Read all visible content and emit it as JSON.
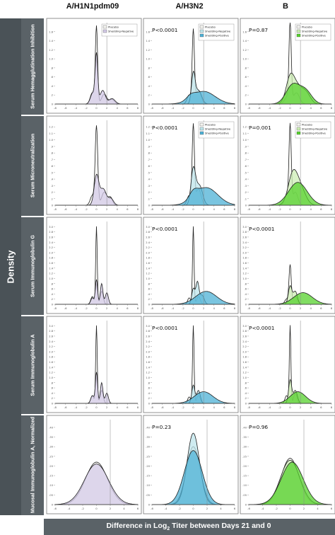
{
  "figure": {
    "y_label": "Density",
    "x_label_pre": "Difference in Log",
    "x_label_sub": "2",
    "x_label_post": " Titer between Days 21 and 0"
  },
  "columns": [
    "A/H1N1pdm09",
    "A/H3N2",
    "B"
  ],
  "rows": [
    "Serum Hemagglutination Inhibition",
    "Serum Microneutralization",
    "Serum Immunoglobulin G",
    "Serum Immunoglobulin A",
    "Mucosal Immunoglobulin A, Normalized"
  ],
  "legend_labels": {
    "placebo": "Placebo",
    "shedding_negative": "Shedding-Negative",
    "shedding_positive": "Shedding-Positive"
  },
  "colors": {
    "placebo": "#f4f4f0",
    "h1_neg": "#d4cbe8",
    "h3_neg": "#bfe6ec",
    "h3_pos": "#4eb1d6",
    "b_neg": "#cdeeb6",
    "b_pos": "#57d12e"
  },
  "chart_data": [
    {
      "type": "area",
      "row": 0,
      "col": 0,
      "p_value": "",
      "xlim": [
        -8,
        8
      ],
      "ylim": [
        0,
        1.8
      ],
      "yticks": [
        0,
        0.2,
        0.4,
        0.6,
        0.8,
        1.0,
        1.2,
        1.4,
        1.6
      ],
      "legend": [
        "Placebo",
        "Shedding-Negative"
      ],
      "series": [
        {
          "name": "Placebo",
          "color": "placebo",
          "peaks": [
            [
              0,
              1.7,
              0.22
            ],
            [
              1.5,
              0.22,
              0.5
            ],
            [
              -0.8,
              0.25,
              0.4
            ],
            [
              3,
              0.1,
              0.5
            ]
          ]
        },
        {
          "name": "Shedding-Negative",
          "color": "h1_neg",
          "peaks": [
            [
              0,
              1.05,
              0.25
            ],
            [
              1.2,
              0.3,
              0.5
            ],
            [
              -0.7,
              0.25,
              0.45
            ],
            [
              3,
              0.12,
              0.6
            ]
          ]
        }
      ]
    },
    {
      "type": "area",
      "row": 0,
      "col": 1,
      "p_value": "P<0.0001",
      "xlim": [
        -8,
        8
      ],
      "ylim": [
        0,
        1.8
      ],
      "yticks": [
        0,
        0.2,
        0.4,
        0.6,
        0.8,
        1.0,
        1.2,
        1.4,
        1.6
      ],
      "legend": [
        "Placebo",
        "Shedding-Negative",
        "Shedding-Positive"
      ],
      "series": [
        {
          "name": "Placebo",
          "color": "placebo",
          "peaks": [
            [
              0,
              1.6,
              0.22
            ],
            [
              1,
              0.3,
              0.5
            ],
            [
              -0.8,
              0.2,
              0.4
            ]
          ]
        },
        {
          "name": "Shedding-Negative",
          "color": "h3_neg",
          "peaks": [
            [
              0,
              0.65,
              0.35
            ],
            [
              1,
              0.3,
              0.6
            ]
          ]
        },
        {
          "name": "Shedding-Positive",
          "color": "h3_pos",
          "peaks": [
            [
              2,
              0.28,
              2.2
            ],
            [
              -0.5,
              0.08,
              0.8
            ]
          ]
        }
      ]
    },
    {
      "type": "area",
      "row": 0,
      "col": 2,
      "p_value": "P=0.87",
      "xlim": [
        -8,
        8
      ],
      "ylim": [
        0,
        1.8
      ],
      "yticks": [
        0,
        0.2,
        0.4,
        0.6,
        0.8,
        1.0,
        1.2,
        1.4,
        1.6
      ],
      "legend": [
        "Placebo",
        "Shedding-Negative",
        "Shedding-Positive"
      ],
      "series": [
        {
          "name": "Placebo",
          "color": "placebo",
          "peaks": [
            [
              0,
              1.75,
              0.22
            ],
            [
              1.2,
              0.25,
              0.6
            ],
            [
              -0.6,
              0.15,
              0.5
            ]
          ]
        },
        {
          "name": "Shedding-Negative",
          "color": "b_neg",
          "peaks": [
            [
              0,
              0.55,
              0.8
            ],
            [
              1.5,
              0.35,
              1.0
            ],
            [
              3.2,
              0.2,
              0.8
            ]
          ]
        },
        {
          "name": "Shedding-Positive",
          "color": "b_pos",
          "peaks": [
            [
              0.5,
              0.42,
              1.3
            ],
            [
              3,
              0.28,
              1.2
            ]
          ]
        }
      ]
    },
    {
      "type": "area",
      "row": 1,
      "col": 0,
      "p_value": "",
      "xlim": [
        -8,
        8
      ],
      "ylim": [
        0,
        1.3
      ],
      "yticks": [
        0,
        0.1,
        0.2,
        0.3,
        0.4,
        0.5,
        0.6,
        0.7,
        0.8,
        0.9,
        1.0,
        1.1,
        1.2
      ],
      "series": [
        {
          "name": "Placebo",
          "color": "placebo",
          "peaks": [
            [
              0,
              1.2,
              0.25
            ],
            [
              1.5,
              0.2,
              0.5
            ],
            [
              -0.8,
              0.15,
              0.4
            ],
            [
              2.7,
              0.12,
              0.4
            ]
          ]
        },
        {
          "name": "Shedding-Negative",
          "color": "h1_neg",
          "peaks": [
            [
              0,
              0.45,
              0.45
            ],
            [
              1.3,
              0.25,
              0.6
            ],
            [
              2.8,
              0.1,
              0.5
            ]
          ]
        }
      ]
    },
    {
      "type": "area",
      "row": 1,
      "col": 1,
      "p_value": "P<0.0001",
      "xlim": [
        -8,
        8
      ],
      "ylim": [
        0,
        1.3
      ],
      "yticks": [
        0,
        0.1,
        0.2,
        0.3,
        0.4,
        0.5,
        0.6,
        0.7,
        0.8,
        0.9,
        1.0,
        1.1,
        1.2
      ],
      "legend": [
        "Placebo",
        "Shedding-Negative",
        "Shedding-Positive"
      ],
      "series": [
        {
          "name": "Placebo",
          "color": "placebo",
          "peaks": [
            [
              0,
              1.2,
              0.22
            ],
            [
              1,
              0.25,
              0.5
            ],
            [
              -0.8,
              0.15,
              0.4
            ]
          ]
        },
        {
          "name": "Shedding-Negative",
          "color": "h3_neg",
          "peaks": [
            [
              0,
              0.55,
              0.45
            ],
            [
              1.2,
              0.3,
              0.6
            ]
          ]
        },
        {
          "name": "Shedding-Positive",
          "color": "h3_pos",
          "peaks": [
            [
              2.5,
              0.27,
              2.2
            ],
            [
              0,
              0.1,
              0.8
            ]
          ]
        }
      ]
    },
    {
      "type": "area",
      "row": 1,
      "col": 2,
      "p_value": "P=0.001",
      "xlim": [
        -8,
        8
      ],
      "ylim": [
        0,
        1.3
      ],
      "yticks": [
        0,
        0.1,
        0.2,
        0.3,
        0.4,
        0.5,
        0.6,
        0.7,
        0.8,
        0.9,
        1.0,
        1.1,
        1.2
      ],
      "legend": [
        "Placebo",
        "Shedding-Negative",
        "Shedding-Positive"
      ],
      "series": [
        {
          "name": "Placebo",
          "color": "placebo",
          "peaks": [
            [
              0,
              1.2,
              0.22
            ],
            [
              1,
              0.2,
              0.5
            ],
            [
              -0.7,
              0.15,
              0.4
            ]
          ]
        },
        {
          "name": "Shedding-Negative",
          "color": "b_neg",
          "peaks": [
            [
              0.5,
              0.45,
              0.9
            ],
            [
              2,
              0.25,
              1.0
            ]
          ]
        },
        {
          "name": "Shedding-Positive",
          "color": "b_pos",
          "peaks": [
            [
              1.5,
              0.35,
              1.8
            ]
          ]
        }
      ]
    },
    {
      "type": "area",
      "row": 2,
      "col": 0,
      "p_value": "",
      "xlim": [
        -8,
        8
      ],
      "ylim": [
        0,
        3.2
      ],
      "yticks": [
        0,
        0.2,
        0.4,
        0.6,
        0.8,
        1.0,
        1.2,
        1.4,
        1.6,
        1.8,
        2.0,
        2.2,
        2.4,
        2.6,
        2.8,
        3.0
      ],
      "series": [
        {
          "name": "Placebo",
          "color": "placebo",
          "peaks": [
            [
              0,
              3.0,
              0.15
            ],
            [
              1,
              0.5,
              0.3
            ],
            [
              -0.8,
              0.3,
              0.3
            ]
          ]
        },
        {
          "name": "Shedding-Negative",
          "color": "h1_neg",
          "peaks": [
            [
              0,
              0.95,
              0.22
            ],
            [
              1,
              0.8,
              0.25
            ],
            [
              2,
              0.45,
              0.3
            ],
            [
              -0.8,
              0.25,
              0.3
            ]
          ]
        }
      ]
    },
    {
      "type": "area",
      "row": 2,
      "col": 1,
      "p_value": "P<0.0001",
      "xlim": [
        -8,
        8
      ],
      "ylim": [
        0,
        3.2
      ],
      "yticks": [
        0,
        0.2,
        0.4,
        0.6,
        0.8,
        1.0,
        1.2,
        1.4,
        1.6,
        1.8,
        2.0,
        2.2,
        2.4,
        2.6,
        2.8,
        3.0
      ],
      "series": [
        {
          "name": "Placebo",
          "color": "placebo",
          "peaks": [
            [
              0,
              3.0,
              0.15
            ],
            [
              1,
              0.3,
              0.35
            ],
            [
              -0.8,
              0.25,
              0.3
            ]
          ]
        },
        {
          "name": "Shedding-Negative",
          "color": "h3_neg",
          "peaks": [
            [
              0,
              0.6,
              0.3
            ],
            [
              0.8,
              0.85,
              0.3
            ],
            [
              1.7,
              0.35,
              0.4
            ]
          ]
        },
        {
          "name": "Shedding-Positive",
          "color": "h3_pos",
          "peaks": [
            [
              2.5,
              0.5,
              2.0
            ]
          ]
        }
      ]
    },
    {
      "type": "area",
      "row": 2,
      "col": 2,
      "p_value": "P<0.0001",
      "xlim": [
        -8,
        8
      ],
      "ylim": [
        0,
        3.2
      ],
      "yticks": [
        0,
        0.2,
        0.4,
        0.6,
        0.8,
        1.0,
        1.2,
        1.4,
        1.6,
        1.8,
        2.0,
        2.2,
        2.4,
        2.6,
        2.8,
        3.0
      ],
      "series": [
        {
          "name": "Placebo",
          "color": "placebo",
          "peaks": [
            [
              0,
              1.5,
              0.22
            ],
            [
              1,
              0.3,
              0.4
            ],
            [
              -0.7,
              0.2,
              0.35
            ]
          ]
        },
        {
          "name": "Shedding-Negative",
          "color": "b_neg",
          "peaks": [
            [
              0,
              0.7,
              0.35
            ],
            [
              1,
              0.5,
              0.4
            ]
          ]
        },
        {
          "name": "Shedding-Positive",
          "color": "b_pos",
          "peaks": [
            [
              2.5,
              0.45,
              1.8
            ]
          ]
        }
      ]
    },
    {
      "type": "area",
      "row": 3,
      "col": 0,
      "p_value": "",
      "xlim": [
        -8,
        8
      ],
      "ylim": [
        0,
        3.2
      ],
      "yticks": [
        0,
        0.2,
        0.4,
        0.6,
        0.8,
        1.0,
        1.2,
        1.4,
        1.6,
        1.8,
        2.0,
        2.2,
        2.4,
        2.6,
        2.8,
        3.0
      ],
      "series": [
        {
          "name": "Placebo",
          "color": "placebo",
          "peaks": [
            [
              0,
              3.0,
              0.15
            ],
            [
              1,
              0.5,
              0.3
            ],
            [
              -0.8,
              0.3,
              0.3
            ]
          ]
        },
        {
          "name": "Shedding-Negative",
          "color": "h1_neg",
          "peaks": [
            [
              0,
              1.2,
              0.22
            ],
            [
              1,
              0.8,
              0.25
            ],
            [
              2,
              0.4,
              0.3
            ],
            [
              -0.8,
              0.3,
              0.3
            ]
          ]
        }
      ]
    },
    {
      "type": "area",
      "row": 3,
      "col": 1,
      "p_value": "P<0.0001",
      "xlim": [
        -8,
        8
      ],
      "ylim": [
        0,
        3.2
      ],
      "yticks": [
        0,
        0.2,
        0.4,
        0.6,
        0.8,
        1.0,
        1.2,
        1.4,
        1.6,
        1.8,
        2.0,
        2.2,
        2.4,
        2.6,
        2.8,
        3.0
      ],
      "series": [
        {
          "name": "Placebo",
          "color": "placebo",
          "peaks": [
            [
              0,
              3.0,
              0.15
            ],
            [
              1,
              0.3,
              0.35
            ],
            [
              -0.8,
              0.25,
              0.3
            ]
          ]
        },
        {
          "name": "Shedding-Negative",
          "color": "h3_neg",
          "peaks": [
            [
              0,
              0.7,
              0.3
            ],
            [
              1,
              0.5,
              0.35
            ]
          ]
        },
        {
          "name": "Shedding-Positive",
          "color": "h3_pos",
          "peaks": [
            [
              2,
              0.45,
              1.8
            ]
          ]
        }
      ]
    },
    {
      "type": "area",
      "row": 3,
      "col": 2,
      "p_value": "P<0.0001",
      "xlim": [
        -8,
        8
      ],
      "ylim": [
        0,
        3.2
      ],
      "yticks": [
        0,
        0.2,
        0.4,
        0.6,
        0.8,
        1.0,
        1.2,
        1.4,
        1.6,
        1.8,
        2.0,
        2.2,
        2.4,
        2.6,
        2.8,
        3.0
      ],
      "series": [
        {
          "name": "Placebo",
          "color": "placebo",
          "peaks": [
            [
              0,
              3.0,
              0.15
            ],
            [
              1,
              0.4,
              0.3
            ],
            [
              -0.7,
              0.3,
              0.3
            ]
          ]
        },
        {
          "name": "Shedding-Negative",
          "color": "b_neg",
          "peaks": [
            [
              0,
              0.9,
              0.3
            ],
            [
              1,
              0.5,
              0.4
            ]
          ]
        },
        {
          "name": "Shedding-Positive",
          "color": "b_pos",
          "peaks": [
            [
              1.5,
              0.45,
              1.5
            ]
          ]
        }
      ]
    },
    {
      "type": "area",
      "row": 4,
      "col": 0,
      "p_value": "",
      "xlim": [
        -6,
        6
      ],
      "ylim": [
        0,
        0.44
      ],
      "yticks": [
        0,
        0.05,
        0.1,
        0.15,
        0.2,
        0.25,
        0.3,
        0.35,
        0.4
      ],
      "series": [
        {
          "name": "Placebo",
          "color": "placebo",
          "peaks": [
            [
              0,
              0.22,
              1.6
            ]
          ]
        },
        {
          "name": "Shedding-Negative",
          "color": "h1_neg",
          "peaks": [
            [
              0,
              0.21,
              1.75
            ]
          ]
        }
      ]
    },
    {
      "type": "area",
      "row": 4,
      "col": 1,
      "p_value": "P=0.23",
      "xlim": [
        -6,
        6
      ],
      "ylim": [
        0,
        0.44
      ],
      "yticks": [
        0,
        0.05,
        0.1,
        0.15,
        0.2,
        0.25,
        0.3,
        0.35,
        0.4
      ],
      "series": [
        {
          "name": "Placebo",
          "color": "placebo",
          "peaks": [
            [
              0,
              0.3,
              1.0
            ]
          ]
        },
        {
          "name": "Shedding-Negative",
          "color": "h3_neg",
          "peaks": [
            [
              0,
              0.37,
              0.9
            ]
          ]
        },
        {
          "name": "Shedding-Positive",
          "color": "h3_pos",
          "peaks": [
            [
              0,
              0.28,
              1.3
            ]
          ]
        }
      ]
    },
    {
      "type": "area",
      "row": 4,
      "col": 2,
      "p_value": "P=0.96",
      "xlim": [
        -6,
        6
      ],
      "ylim": [
        0,
        0.44
      ],
      "yticks": [
        0,
        0.05,
        0.1,
        0.15,
        0.2,
        0.25,
        0.3,
        0.35,
        0.4
      ],
      "series": [
        {
          "name": "Placebo",
          "color": "placebo",
          "peaks": [
            [
              0,
              0.24,
              1.3
            ]
          ]
        },
        {
          "name": "Shedding-Negative",
          "color": "b_neg",
          "peaks": [
            [
              0,
              0.23,
              1.4
            ]
          ]
        },
        {
          "name": "Shedding-Positive",
          "color": "b_pos",
          "peaks": [
            [
              0.3,
              0.22,
              1.6
            ]
          ]
        }
      ]
    }
  ]
}
